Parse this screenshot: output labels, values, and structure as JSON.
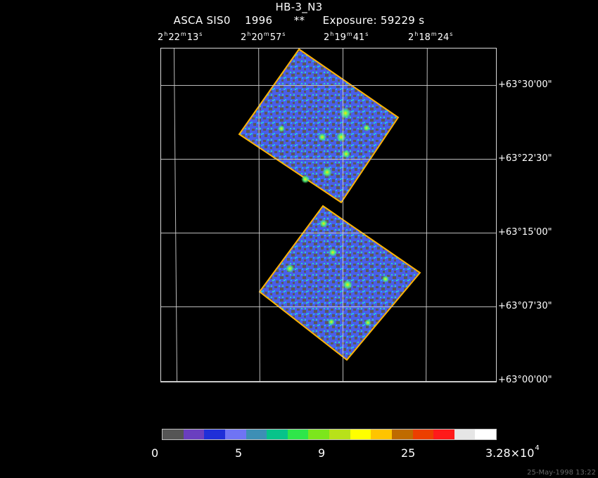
{
  "header": {
    "title": "HB-3_N3",
    "subtitle": "ASCA SIS0    1996      **     Exposure: 59229 s"
  },
  "ra_ticks": [
    {
      "h": "2",
      "m": "22",
      "s": "13"
    },
    {
      "h": "2",
      "m": "20",
      "s": "57"
    },
    {
      "h": "2",
      "m": "19",
      "s": "41"
    },
    {
      "h": "2",
      "m": "18",
      "s": "24"
    }
  ],
  "dec_ticks": [
    "+63°30'00\"",
    "+63°22'30\"",
    "+63°15'00\"",
    "+63°07'30\"",
    "+63°00'00\""
  ],
  "colorbar": {
    "colors": [
      "#555555",
      "#6a3fbf",
      "#1f2fd8",
      "#6f74f4",
      "#3d8fb5",
      "#07c38a",
      "#2fe64a",
      "#7ce61c",
      "#b8e11a",
      "#ffff00",
      "#ffc400",
      "#bf6b00",
      "#ec3f00",
      "#ff1a1a",
      "#e6e6e6",
      "#ffffff"
    ],
    "labels": [
      "0",
      "5",
      "9",
      "25",
      "3.28×10",
      "4"
    ]
  },
  "footer": {
    "stamp": "25-May-1998 13:22"
  }
}
